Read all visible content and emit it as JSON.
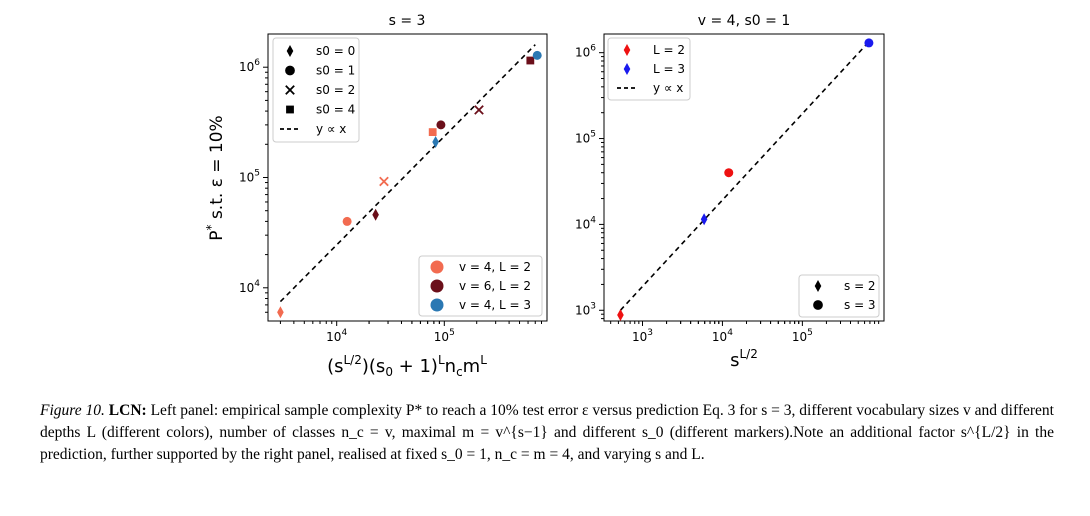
{
  "chart_data": [
    {
      "type": "scatter",
      "title": "s = 3",
      "xlabel": "(s^{L/2})(s0 + 1)^L n_c m^L",
      "ylabel": "P* s.t. ε = 10%",
      "xscale": "log",
      "yscale": "log",
      "xlim": [
        2300,
        900000
      ],
      "ylim": [
        5000,
        2000000
      ],
      "xticks": [
        "10^4",
        "10^5"
      ],
      "yticks": [
        "10^4",
        "10^5",
        "10^6"
      ],
      "grid": false,
      "legend_placement": [
        "upper left",
        "lower right"
      ],
      "marker_legend": [
        {
          "marker": "diamond",
          "label": "s0 = 0"
        },
        {
          "marker": "circle",
          "label": "s0 = 1"
        },
        {
          "marker": "x",
          "label": "s0 = 2"
        },
        {
          "marker": "square",
          "label": "s0 = 4"
        },
        {
          "marker": "dash",
          "label": "y ∝ x"
        }
      ],
      "color_legend": [
        {
          "color": "#f26b50",
          "label": "v = 4, L = 2"
        },
        {
          "color": "#6b0f1a",
          "label": "v = 6, L = 2"
        },
        {
          "color": "#2a78b3",
          "label": "v = 4, L = 3"
        }
      ],
      "points": [
        {
          "x": 3000,
          "y": 6000,
          "marker": "diamond",
          "color": "#f26b50"
        },
        {
          "x": 12500,
          "y": 40000,
          "marker": "circle",
          "color": "#f26b50"
        },
        {
          "x": 27500,
          "y": 92000,
          "marker": "x",
          "color": "#f26b50"
        },
        {
          "x": 78000,
          "y": 258000,
          "marker": "square",
          "color": "#f26b50"
        },
        {
          "x": 23000,
          "y": 46000,
          "marker": "diamond",
          "color": "#6b0f1a"
        },
        {
          "x": 93000,
          "y": 300000,
          "marker": "circle",
          "color": "#6b0f1a"
        },
        {
          "x": 210000,
          "y": 410000,
          "marker": "x",
          "color": "#6b0f1a"
        },
        {
          "x": 630000,
          "y": 1150000,
          "marker": "square",
          "color": "#6b0f1a"
        },
        {
          "x": 83000,
          "y": 210000,
          "marker": "diamond",
          "color": "#2a78b3"
        },
        {
          "x": 730000,
          "y": 1280000,
          "marker": "circle",
          "color": "#2a78b3"
        }
      ],
      "reference_line": {
        "label": "y ∝ x",
        "from": [
          3000,
          7500
        ],
        "to": [
          700000,
          1600000
        ]
      }
    },
    {
      "type": "scatter",
      "title": "v = 4, s0 = 1",
      "xlabel": "s^{L/2}",
      "ylabel": "",
      "xscale": "log",
      "yscale": "log",
      "xlim": [
        330,
        1050000
      ],
      "ylim": [
        750,
        1650000
      ],
      "xticks": [
        "10^3",
        "10^4",
        "10^5"
      ],
      "yticks": [
        "10^3",
        "10^4",
        "10^5",
        "10^6"
      ],
      "grid": false,
      "legend_placement": [
        "upper left",
        "lower right"
      ],
      "series_legend": [
        {
          "marker": "diamond",
          "color": "#ee1111",
          "label": "L = 2"
        },
        {
          "marker": "diamond",
          "color": "#1a1aee",
          "label": "L = 3"
        },
        {
          "marker": "dash",
          "color": "#000000",
          "label": "y ∝ x"
        }
      ],
      "marker_legend": [
        {
          "marker": "diamond",
          "label": "s = 2"
        },
        {
          "marker": "circle",
          "label": "s = 3"
        }
      ],
      "points": [
        {
          "x": 530,
          "y": 880,
          "marker": "diamond",
          "color": "#ee1111"
        },
        {
          "x": 12000,
          "y": 40000,
          "marker": "circle",
          "color": "#ee1111"
        },
        {
          "x": 5900,
          "y": 11500,
          "marker": "diamond",
          "color": "#1a1aee"
        },
        {
          "x": 680000,
          "y": 1300000,
          "marker": "circle",
          "color": "#1a1aee"
        }
      ],
      "reference_line": {
        "label": "y ∝ x",
        "from": [
          530,
          1000
        ],
        "to": [
          650000,
          1280000
        ]
      }
    }
  ],
  "caption": {
    "lead": "Figure 10.",
    "bold": "LCN:",
    "text": "Left panel: empirical sample complexity P* to reach a 10% test error ε versus prediction Eq. 3 for s = 3, different vocabulary sizes v and different depths L (different colors), number of classes n_c = v, maximal m = v^{s−1} and different s_0 (different markers).Note an additional factor s^{L/2} in the prediction, further supported by the right panel, realised at fixed s_0 = 1, n_c = m = 4, and varying s and L."
  }
}
